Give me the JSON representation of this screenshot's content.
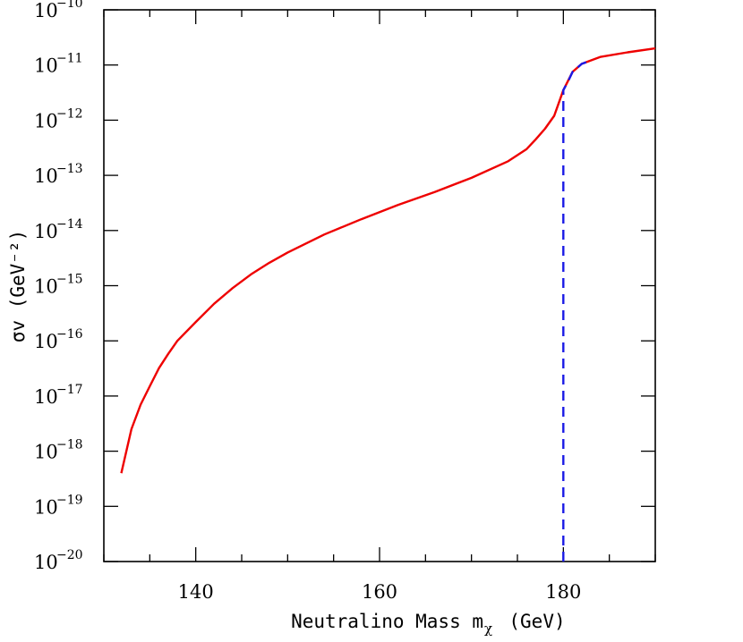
{
  "chart_data": {
    "type": "line",
    "xlabel": "Neutralino Mass m",
    "xlabel_subscript": "χ",
    "xlabel_unit": "(GeV)",
    "ylabel": "σv  (GeV⁻²)",
    "xlim": [
      130,
      190
    ],
    "ylim_exponents": [
      -20,
      -10
    ],
    "yscale": "log",
    "x_ticks": [
      "140",
      "160",
      "180"
    ],
    "y_tick_exponents": [
      "-20",
      "-19",
      "-18",
      "-17",
      "-16",
      "-15",
      "-14",
      "-13",
      "-12",
      "-11",
      "-10"
    ],
    "y_tick_base": "10",
    "grid": false,
    "series": [
      {
        "color": "#ee0000",
        "style": "solid",
        "x": [
          131.9,
          133,
          134,
          135,
          136,
          137,
          138,
          140,
          142,
          144,
          146,
          148,
          150,
          154,
          158,
          162,
          166,
          170,
          174,
          176,
          177,
          178,
          179,
          180,
          181,
          182,
          184,
          187,
          190
        ],
        "y": [
          4e-19,
          2.5e-18,
          7e-18,
          1.5e-17,
          3.2e-17,
          5.8e-17,
          1e-16,
          2.2e-16,
          4.7e-16,
          9e-16,
          1.6e-15,
          2.6e-15,
          4e-15,
          8.5e-15,
          1.6e-14,
          2.9e-14,
          5e-14,
          9e-14,
          1.8e-13,
          3e-13,
          4.5e-13,
          7e-13,
          1.2e-12,
          3.5e-12,
          7.5e-12,
          1.05e-11,
          1.4e-11,
          1.7e-11,
          2e-11
        ]
      },
      {
        "color": "#1a1ae6",
        "style": "dashed",
        "x": [
          180,
          180,
          180.5,
          181,
          182,
          183
        ],
        "y": [
          1e-20,
          3.5e-12,
          5e-12,
          7.5e-12,
          1.05e-11,
          1.2e-11
        ]
      }
    ]
  }
}
